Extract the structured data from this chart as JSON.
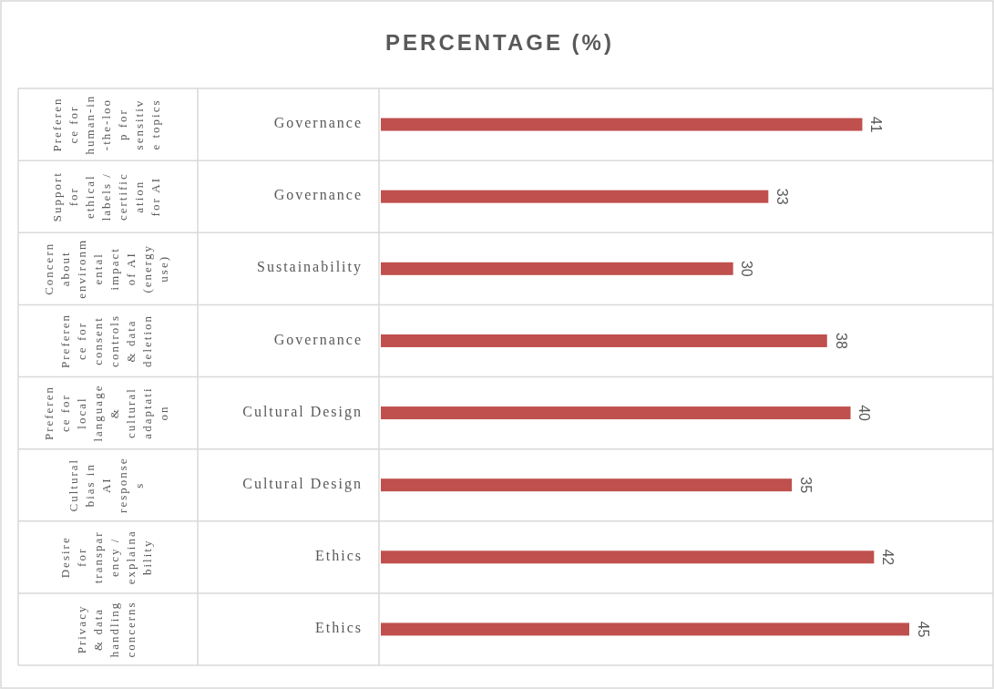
{
  "chart_data": {
    "type": "bar",
    "orientation": "horizontal",
    "title": "PERCENTAGE (%)",
    "categories": [
      "Preference for human-in-the-loop for sensitive topics",
      "Support for ethical labels / certification for AI",
      "Concern about environmental impact of AI (energy use)",
      "Preference for consent controls & data deletion",
      "Preference for local language & cultural adaptation",
      "Cultural bias in AI responses",
      "Desire for transparency / explainability",
      "Privacy & data handling concerns"
    ],
    "values": [
      41,
      33,
      30,
      38,
      40,
      35,
      42,
      45
    ],
    "color": "#c0504d",
    "annotations": [
      "Governance",
      "Governance",
      "Sustainability",
      "Governance",
      "Cultural Design",
      "Cultural Design",
      "Ethics",
      "Ethics"
    ],
    "tick_labels": "y",
    "data_labels": true,
    "grid": "y"
  }
}
